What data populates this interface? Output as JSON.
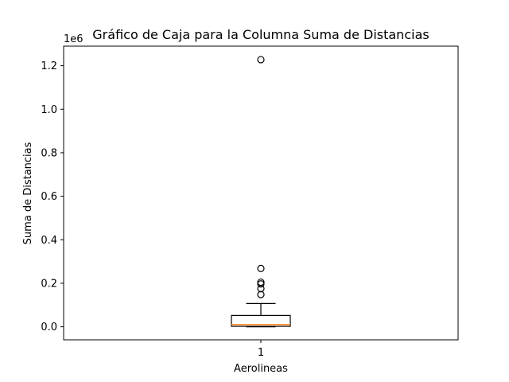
{
  "chart_data": {
    "type": "boxplot",
    "title": "Gráfico de Caja para la Columna Suma de Distancias",
    "xlabel": "Aerolineas",
    "ylabel": "Suma de Distancias",
    "y_offset_label": "1e6",
    "categories": [
      "1"
    ],
    "y_ticks": [
      "0.0",
      "0.2",
      "0.4",
      "0.6",
      "0.8",
      "1.0",
      "1.2"
    ],
    "y_tick_values": [
      0,
      0.2,
      0.4,
      0.6,
      0.8,
      1.0,
      1.2
    ],
    "ylim": [
      -0.06,
      1.29
    ],
    "y_scale_factor": 1000000,
    "grid": false,
    "box": {
      "whisker_low": 0,
      "q1": 0.002,
      "median": 0.01,
      "q3": 0.052,
      "whisker_high": 0.107
    },
    "outliers": [
      0.148,
      0.175,
      0.197,
      0.205,
      0.268,
      1.228
    ],
    "colors": {
      "box": "#000000",
      "median": "#ff7f0e",
      "flier": "#000000"
    }
  }
}
